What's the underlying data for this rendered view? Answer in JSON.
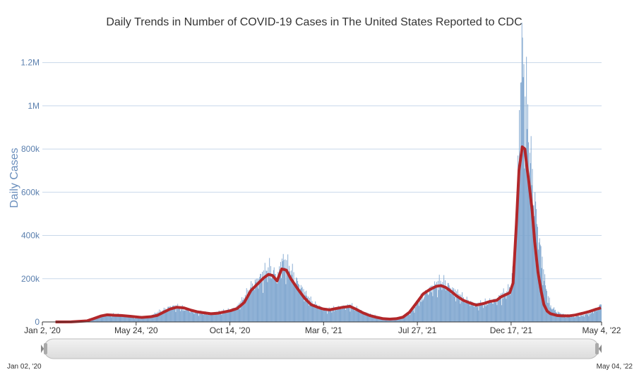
{
  "chart_data": {
    "type": "bar",
    "title": "Daily Trends in Number of COVID-19 Cases in The United States Reported to CDC",
    "xlabel": "",
    "ylabel": "Daily Cases",
    "x_range": [
      "2020-01-02",
      "2022-05-04"
    ],
    "ylim": [
      0,
      1300000
    ],
    "y_ticks": [
      0,
      200000,
      400000,
      600000,
      800000,
      1000000,
      1200000
    ],
    "y_tick_labels": [
      "0",
      "200k",
      "400k",
      "600k",
      "800k",
      "1M",
      "1.2M"
    ],
    "x_ticks": [
      "2020-01-02",
      "2020-05-24",
      "2020-10-14",
      "2021-03-06",
      "2021-07-27",
      "2021-12-17",
      "2022-05-04"
    ],
    "x_tick_labels": [
      "Jan 2, '20",
      "May 24, '20",
      "Oct 14, '20",
      "Mar 6, '21",
      "Jul 27, '21",
      "Dec 17, '21",
      "May 4, '22"
    ],
    "grid": true,
    "navigator": {
      "start_label": "Jan 02, '20",
      "end_label": "May 04, '22"
    },
    "series": [
      {
        "type": "bar",
        "color": "#7fa6cf",
        "dates": [
          "2020-02-15",
          "2020-03-01",
          "2020-03-15",
          "2020-03-25",
          "2020-04-05",
          "2020-04-15",
          "2020-04-25",
          "2020-05-05",
          "2020-05-15",
          "2020-05-25",
          "2020-06-05",
          "2020-06-15",
          "2020-06-25",
          "2020-07-05",
          "2020-07-15",
          "2020-07-25",
          "2020-08-05",
          "2020-08-15",
          "2020-08-25",
          "2020-09-05",
          "2020-09-15",
          "2020-09-25",
          "2020-10-05",
          "2020-10-15",
          "2020-10-25",
          "2020-11-05",
          "2020-11-15",
          "2020-11-25",
          "2020-12-05",
          "2020-12-12",
          "2020-12-18",
          "2020-12-25",
          "2021-01-01",
          "2021-01-08",
          "2021-01-15",
          "2021-01-25",
          "2021-02-05",
          "2021-02-15",
          "2021-02-25",
          "2021-03-05",
          "2021-03-15",
          "2021-03-25",
          "2021-04-05",
          "2021-04-15",
          "2021-04-25",
          "2021-05-05",
          "2021-05-15",
          "2021-05-25",
          "2021-06-05",
          "2021-06-15",
          "2021-06-25",
          "2021-07-05",
          "2021-07-15",
          "2021-07-25",
          "2021-08-05",
          "2021-08-15",
          "2021-08-25",
          "2021-09-01",
          "2021-09-08",
          "2021-09-15",
          "2021-09-25",
          "2021-10-05",
          "2021-10-15",
          "2021-10-25",
          "2021-11-05",
          "2021-11-15",
          "2021-11-25",
          "2021-12-01",
          "2021-12-08",
          "2021-12-15",
          "2021-12-20",
          "2021-12-25",
          "2021-12-29",
          "2022-01-03",
          "2022-01-07",
          "2022-01-10",
          "2022-01-13",
          "2022-01-18",
          "2022-01-22",
          "2022-01-27",
          "2022-02-01",
          "2022-02-05",
          "2022-02-10",
          "2022-02-15",
          "2022-02-25",
          "2022-03-05",
          "2022-03-15",
          "2022-03-25",
          "2022-04-05",
          "2022-04-15",
          "2022-04-25",
          "2022-05-03"
        ],
        "values": [
          0,
          1000,
          10000,
          20000,
          30000,
          35000,
          32000,
          30000,
          25000,
          22000,
          24000,
          28000,
          42000,
          55000,
          70000,
          70000,
          60000,
          50000,
          45000,
          40000,
          38000,
          45000,
          48000,
          55000,
          70000,
          110000,
          160000,
          190000,
          220000,
          240000,
          230000,
          200000,
          280000,
          260000,
          230000,
          180000,
          130000,
          90000,
          72000,
          62000,
          55000,
          62000,
          70000,
          75000,
          60000,
          45000,
          35000,
          25000,
          15000,
          12000,
          14000,
          20000,
          40000,
          80000,
          120000,
          150000,
          170000,
          180000,
          175000,
          155000,
          130000,
          105000,
          90000,
          80000,
          85000,
          95000,
          100000,
          120000,
          130000,
          150000,
          250000,
          500000,
          900000,
          1260000,
          950000,
          1000000,
          800000,
          650000,
          550000,
          400000,
          300000,
          200000,
          120000,
          70000,
          45000,
          35000,
          28000,
          25000,
          30000,
          40000,
          55000,
          80000
        ]
      },
      {
        "type": "line",
        "color": "#b2272a",
        "dates": [
          "2020-01-22",
          "2020-02-15",
          "2020-03-10",
          "2020-03-20",
          "2020-04-01",
          "2020-04-10",
          "2020-04-20",
          "2020-05-01",
          "2020-05-15",
          "2020-06-01",
          "2020-06-15",
          "2020-06-25",
          "2020-07-05",
          "2020-07-15",
          "2020-07-25",
          "2020-08-05",
          "2020-08-15",
          "2020-08-25",
          "2020-09-05",
          "2020-09-15",
          "2020-09-25",
          "2020-10-05",
          "2020-10-15",
          "2020-10-25",
          "2020-11-05",
          "2020-11-15",
          "2020-11-25",
          "2020-12-05",
          "2020-12-12",
          "2020-12-18",
          "2020-12-25",
          "2021-01-01",
          "2021-01-08",
          "2021-01-15",
          "2021-01-25",
          "2021-02-05",
          "2021-02-15",
          "2021-02-25",
          "2021-03-05",
          "2021-03-15",
          "2021-03-25",
          "2021-04-05",
          "2021-04-15",
          "2021-04-25",
          "2021-05-05",
          "2021-05-15",
          "2021-05-25",
          "2021-06-05",
          "2021-06-15",
          "2021-06-25",
          "2021-07-05",
          "2021-07-15",
          "2021-07-25",
          "2021-08-05",
          "2021-08-15",
          "2021-08-25",
          "2021-09-01",
          "2021-09-08",
          "2021-09-15",
          "2021-09-25",
          "2021-10-05",
          "2021-10-15",
          "2021-10-25",
          "2021-11-05",
          "2021-11-15",
          "2021-11-25",
          "2021-12-01",
          "2021-12-08",
          "2021-12-15",
          "2021-12-20",
          "2021-12-25",
          "2021-12-29",
          "2022-01-03",
          "2022-01-07",
          "2022-01-10",
          "2022-01-13",
          "2022-01-18",
          "2022-01-22",
          "2022-01-27",
          "2022-02-01",
          "2022-02-05",
          "2022-02-10",
          "2022-02-15",
          "2022-02-25",
          "2022-03-05",
          "2022-03-15",
          "2022-03-25",
          "2022-04-05",
          "2022-04-15",
          "2022-04-25",
          "2022-05-03"
        ],
        "values": [
          0,
          500,
          5000,
          15000,
          28000,
          33000,
          31000,
          30000,
          26000,
          21000,
          24000,
          30000,
          45000,
          60000,
          68000,
          65000,
          55000,
          47000,
          42000,
          38000,
          40000,
          46000,
          52000,
          62000,
          90000,
          145000,
          175000,
          205000,
          220000,
          215000,
          190000,
          245000,
          240000,
          200000,
          155000,
          110000,
          80000,
          68000,
          60000,
          56000,
          62000,
          68000,
          72000,
          58000,
          42000,
          30000,
          22000,
          15000,
          13000,
          15000,
          22000,
          45000,
          85000,
          130000,
          150000,
          165000,
          168000,
          160000,
          145000,
          120000,
          100000,
          88000,
          78000,
          85000,
          95000,
          100000,
          115000,
          125000,
          135000,
          180000,
          450000,
          700000,
          810000,
          800000,
          720000,
          650000,
          520000,
          370000,
          230000,
          140000,
          80000,
          50000,
          38000,
          30000,
          28000,
          28000,
          32000,
          40000,
          48000,
          58000,
          65000
        ]
      }
    ]
  }
}
